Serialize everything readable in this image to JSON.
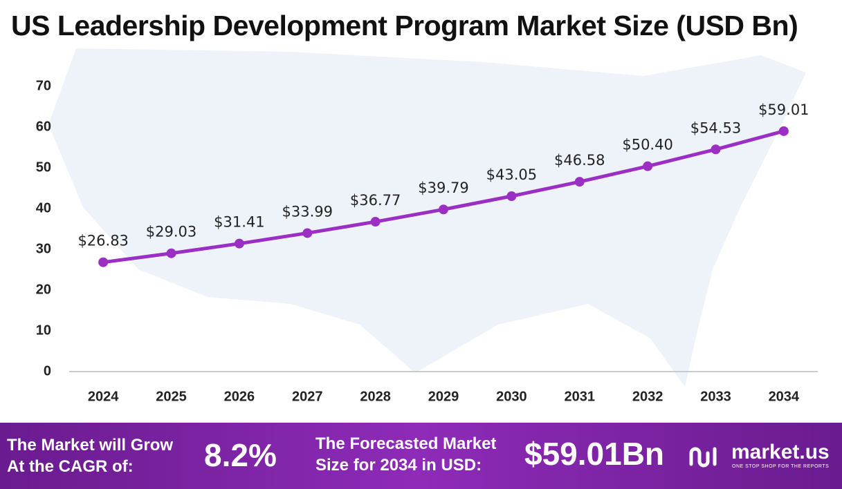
{
  "chart_data": {
    "type": "line",
    "title": "US Leadership Development Program Market Size (USD Bn)",
    "categories": [
      "2024",
      "2025",
      "2026",
      "2027",
      "2028",
      "2029",
      "2030",
      "2031",
      "2032",
      "2033",
      "2034"
    ],
    "values": [
      26.83,
      29.03,
      31.41,
      33.99,
      36.77,
      39.79,
      43.05,
      46.58,
      50.4,
      54.53,
      59.01
    ],
    "value_labels": [
      "$26.83",
      "$29.03",
      "$31.41",
      "$33.99",
      "$36.77",
      "$39.79",
      "$43.05",
      "$46.58",
      "$50.40",
      "$54.53",
      "$59.01"
    ],
    "color": "#9b2fc4",
    "ylim": [
      0,
      70
    ],
    "yticks": [
      0,
      10,
      20,
      30,
      40,
      50,
      60,
      70
    ],
    "grid": false
  },
  "footer": {
    "cagr_text": [
      "The Market will Grow",
      "At the CAGR of:"
    ],
    "cagr_value": "8.2%",
    "forecast_text": [
      "The Forecasted Market",
      "Size for 2034 in USD:"
    ],
    "forecast_value": "$59.01Bn",
    "brand": "market.us",
    "tagline": "ONE STOP SHOP FOR THE REPORTS"
  }
}
